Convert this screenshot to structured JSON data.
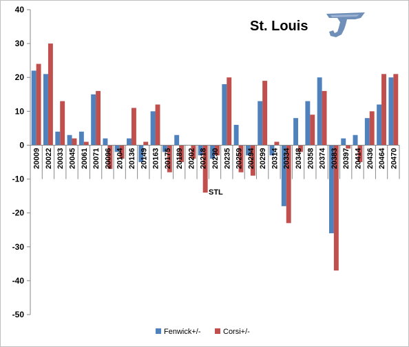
{
  "chart_data": {
    "type": "bar",
    "title": "St. Louis",
    "annotation": "STL",
    "ylim": [
      -50,
      40
    ],
    "yticks": [
      40,
      30,
      20,
      10,
      0,
      -10,
      -20,
      -30,
      -40,
      -50
    ],
    "grid": false,
    "legend_position": "bottom",
    "categories": [
      "20009",
      "20022",
      "20033",
      "20045",
      "20061",
      "20071",
      "20096",
      "20104",
      "20136",
      "20149",
      "20163",
      "20175",
      "20189",
      "20202",
      "20218",
      "20230",
      "20235",
      "20259",
      "20294",
      "20299",
      "20314",
      "20334",
      "20348",
      "20358",
      "20374",
      "20383",
      "20397",
      "20414",
      "20436",
      "20464",
      "20470"
    ],
    "series": [
      {
        "name": "Fenwick+/-",
        "color": "#4f81bd",
        "values": [
          22,
          21,
          4,
          3,
          4,
          15,
          2,
          -2,
          2,
          -5,
          10,
          -2,
          3,
          0,
          -3,
          -4,
          18,
          6,
          -3,
          13,
          -3,
          -18,
          8,
          13,
          20,
          -26,
          2,
          3,
          8,
          12,
          20
        ]
      },
      {
        "name": "Corsi+/-",
        "color": "#c0504d",
        "values": [
          24,
          30,
          13,
          2,
          1,
          16,
          -7,
          -4,
          11,
          1,
          12,
          -8,
          -5,
          -4,
          -14,
          -3,
          20,
          -8,
          -9,
          19,
          1,
          -23,
          -2,
          9,
          16,
          -37,
          -1,
          -5,
          10,
          21,
          21
        ]
      }
    ]
  }
}
